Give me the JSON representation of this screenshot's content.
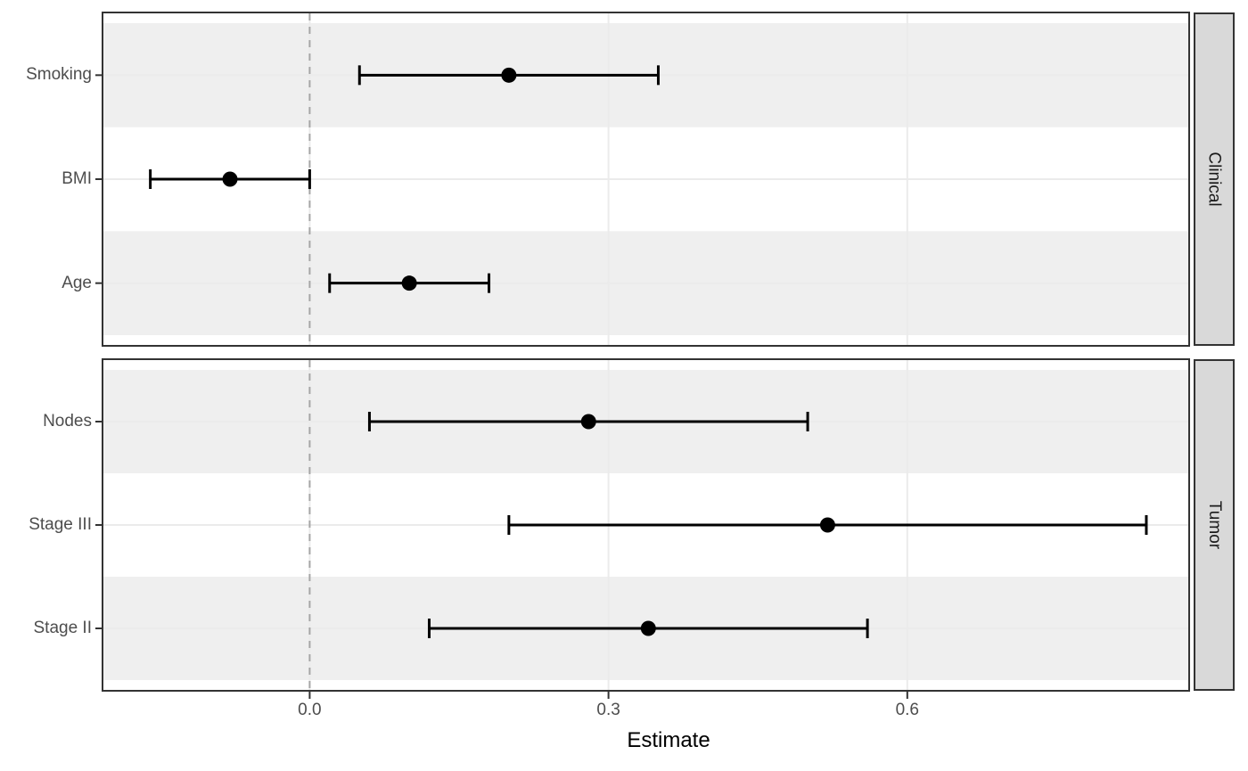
{
  "chart_data": {
    "type": "errorbar",
    "subtype": "horizontal-forest-plot-faceted",
    "title": "",
    "xlabel": "Estimate",
    "ylabel": "",
    "x_ticks": [
      0.0,
      0.3,
      0.6
    ],
    "x_tick_labels": [
      "0.0",
      "0.3",
      "0.6"
    ],
    "xlim": [
      -0.208,
      0.883
    ],
    "reference_line_x": 0.0,
    "legend_position": "none",
    "grid": "light gray horizontal line at each row center and vertical line at each x tick; alternating light-gray row bands",
    "facets": [
      {
        "label": "Clinical",
        "rows": [
          {
            "label": "Smoking",
            "estimate": 0.2,
            "ci_low": 0.05,
            "ci_high": 0.35
          },
          {
            "label": "BMI",
            "estimate": -0.08,
            "ci_low": -0.16,
            "ci_high": 0.0
          },
          {
            "label": "Age",
            "estimate": 0.1,
            "ci_low": 0.02,
            "ci_high": 0.18
          }
        ]
      },
      {
        "label": "Tumor",
        "rows": [
          {
            "label": "Nodes",
            "estimate": 0.28,
            "ci_low": 0.06,
            "ci_high": 0.5
          },
          {
            "label": "Stage III",
            "estimate": 0.52,
            "ci_low": 0.2,
            "ci_high": 0.84
          },
          {
            "label": "Stage II",
            "estimate": 0.34,
            "ci_low": 0.12,
            "ci_high": 0.56
          }
        ]
      }
    ],
    "colors": {
      "panel_background": "#FFFFFF",
      "band": "#EFEFEF",
      "gridline": "#EBEBEB",
      "strip_background": "#D9D9D9",
      "panel_border": "#333333",
      "reference_line": "#A6A6A6",
      "marker": "#000000",
      "axis_text": "#4D4D4D",
      "axis_title": "#000000"
    }
  }
}
